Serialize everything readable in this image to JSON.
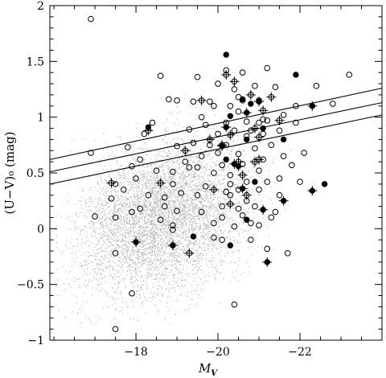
{
  "chart_data": {
    "type": "scatter",
    "title": "",
    "xlabel": "M",
    "xlabel_sub": "V",
    "ylabel": "(U−V)₀ (mag)",
    "xlim": [
      -15.9,
      -24.0
    ],
    "ylim": [
      -1,
      2
    ],
    "x_ticks": [
      -18,
      -20,
      -22
    ],
    "x_tick_labels": [
      "−18",
      "−20",
      "−22"
    ],
    "y_ticks": [
      -1,
      -0.5,
      0,
      0.5,
      1,
      1.5,
      2
    ],
    "y_tick_labels": [
      "−1",
      "−0.5",
      "0",
      "0.5",
      "1",
      "1.5",
      "2"
    ],
    "grid": false,
    "background_cloud": {
      "color": "#b4b4b4",
      "center_x": -18.6,
      "center_y": 0.12,
      "sigma_x": 1.0,
      "sigma_y": 0.33,
      "count": 7000,
      "x_range": [
        -16.0,
        -22.6
      ],
      "y_range": [
        -1.0,
        2.0
      ]
    },
    "lines": [
      {
        "x": [
          -15.9,
          -24.0
        ],
        "y": [
          0.62,
          1.26
        ]
      },
      {
        "x": [
          -15.9,
          -24.0
        ],
        "y": [
          0.51,
          1.13
        ]
      },
      {
        "x": [
          -15.9,
          -24.0
        ],
        "y": [
          0.4,
          1.02
        ]
      }
    ],
    "series": [
      {
        "marker": "open-circle",
        "points": [
          [
            -16.9,
            1.88
          ],
          [
            -16.9,
            0.68
          ],
          [
            -17.0,
            0.11
          ],
          [
            -17.5,
            0.1
          ],
          [
            -17.4,
            0.27
          ],
          [
            -17.5,
            0.4
          ],
          [
            -17.7,
            0.35
          ],
          [
            -17.9,
            0.15
          ],
          [
            -17.9,
            0.56
          ],
          [
            -17.8,
            0.73
          ],
          [
            -18.0,
            0.45
          ],
          [
            -18.1,
            0.62
          ],
          [
            -18.2,
            0.85
          ],
          [
            -18.3,
            0.3
          ],
          [
            -18.5,
            0.52
          ],
          [
            -18.6,
            0.08
          ],
          [
            -18.6,
            1.37
          ],
          [
            -18.7,
            0.2
          ],
          [
            -18.8,
            1.16
          ],
          [
            -18.9,
            0.03
          ],
          [
            -18.9,
            0.51
          ],
          [
            -18.9,
            -0.01
          ],
          [
            -18.9,
            0.4
          ],
          [
            -19.0,
            1.15
          ],
          [
            -19.0,
            0.74
          ],
          [
            -19.0,
            0.16
          ],
          [
            -19.2,
            0.6
          ],
          [
            -19.3,
            0.89
          ],
          [
            -19.3,
            0.55
          ],
          [
            -19.4,
            1.14
          ],
          [
            -19.4,
            0.77
          ],
          [
            -19.5,
            1.36
          ],
          [
            -19.5,
            0.3
          ],
          [
            -19.6,
            1.0
          ],
          [
            -19.6,
            0.65
          ],
          [
            -19.7,
            0.38
          ],
          [
            -19.8,
            0.75
          ],
          [
            -19.9,
            1.1
          ],
          [
            -19.9,
            0.5
          ],
          [
            -19.9,
            0.05
          ],
          [
            -20.0,
            1.3
          ],
          [
            -20.0,
            0.85
          ],
          [
            -20.1,
            0.57
          ],
          [
            -20.1,
            0.2
          ],
          [
            -20.1,
            -0.1
          ],
          [
            -20.2,
            1.42
          ],
          [
            -20.2,
            0.95
          ],
          [
            -20.3,
            0.48
          ],
          [
            -20.3,
            0.3
          ],
          [
            -20.4,
            1.25
          ],
          [
            -20.4,
            0.88
          ],
          [
            -20.5,
            1.05
          ],
          [
            -20.5,
            0.18
          ],
          [
            -20.5,
            0.67
          ],
          [
            -20.6,
            1.4
          ],
          [
            -20.6,
            0.12
          ],
          [
            -20.7,
            0.96
          ],
          [
            -20.7,
            0.42
          ],
          [
            -20.8,
            0.05
          ],
          [
            -20.8,
            -0.1
          ],
          [
            -20.9,
            1.28
          ],
          [
            -20.9,
            0.72
          ],
          [
            -21.0,
            1.15
          ],
          [
            -21.0,
            0.52
          ],
          [
            -21.0,
            0.03
          ],
          [
            -21.1,
            0.98
          ],
          [
            -21.1,
            0.62
          ],
          [
            -21.2,
            1.44
          ],
          [
            -21.2,
            0.42
          ],
          [
            -21.2,
            -0.18
          ],
          [
            -21.3,
            0.75
          ],
          [
            -21.3,
            0.1
          ],
          [
            -21.4,
            1.27
          ],
          [
            -21.5,
            0.88
          ],
          [
            -21.5,
            0.3
          ],
          [
            -21.6,
            0.65
          ],
          [
            -21.7,
            -0.22
          ],
          [
            -21.8,
            0.57
          ],
          [
            -21.9,
            1.1
          ],
          [
            -22.1,
            0.68
          ],
          [
            -22.4,
            1.28
          ],
          [
            -22.8,
            1.12
          ],
          [
            -23.2,
            1.38
          ],
          [
            -20.4,
            -0.68
          ],
          [
            -17.9,
            -0.58
          ],
          [
            -17.5,
            -0.22
          ],
          [
            -17.5,
            -0.9
          ],
          [
            -18.1,
            0.18
          ],
          [
            -19.6,
            0.15
          ],
          [
            -19.9,
            -0.08
          ],
          [
            -20.4,
            0.02
          ],
          [
            -20.7,
            0.25
          ],
          [
            -21.0,
            0.35
          ],
          [
            -20.2,
            0.75
          ],
          [
            -20.6,
            0.58
          ],
          [
            -21.1,
            0.85
          ],
          [
            -20.3,
            1.1
          ],
          [
            -20.5,
            0.35
          ],
          [
            -21.4,
            0.15
          ],
          [
            -18.7,
            0.28
          ],
          [
            -19.1,
            0.32
          ],
          [
            -20.8,
            0.88
          ],
          [
            -19.8,
            1.14
          ],
          [
            -20.0,
            0.68
          ],
          [
            -20.6,
            1.15
          ],
          [
            -21.9,
            0.95
          ],
          [
            -22.0,
            0.42
          ],
          [
            -21.6,
            1.02
          ],
          [
            -20.1,
            0.1
          ],
          [
            -20.9,
            0.2
          ],
          [
            -19.5,
            0.55
          ],
          [
            -18.4,
            0.95
          ],
          [
            -19.7,
            0.93
          ],
          [
            -20.3,
            0.4
          ],
          [
            -21.2,
            0.97
          ],
          [
            -20.7,
            0.83
          ],
          [
            -20.5,
            1.18
          ],
          [
            -21.0,
            0.95
          ],
          [
            -20.2,
            0.33
          ],
          [
            -21.5,
            0.45
          ]
        ]
      },
      {
        "marker": "open-circle-cross",
        "points": [
          [
            -17.4,
            0.41
          ],
          [
            -18.3,
            0.88
          ],
          [
            -18.6,
            0.41
          ],
          [
            -19.2,
            0.7
          ],
          [
            -19.6,
            1.15
          ],
          [
            -19.8,
            0.8
          ],
          [
            -20.2,
            1.38
          ],
          [
            -20.3,
            0.84
          ],
          [
            -20.4,
            1.32
          ],
          [
            -20.5,
            0.6
          ],
          [
            -20.6,
            0.48
          ],
          [
            -20.8,
            1.2
          ],
          [
            -20.9,
            0.6
          ],
          [
            -21.0,
            0.62
          ],
          [
            -21.1,
            1.06
          ],
          [
            -21.3,
            1.18
          ],
          [
            -21.5,
            0.97
          ],
          [
            -19.9,
            0.35
          ],
          [
            -20.1,
            0.75
          ],
          [
            -20.3,
            0.22
          ],
          [
            -20.7,
            0.3
          ],
          [
            -20.9,
            0.9
          ],
          [
            -19.3,
            -0.22
          ],
          [
            -21.0,
            0.82
          ]
        ]
      },
      {
        "marker": "filled-circle",
        "points": [
          [
            -18.3,
            0.91
          ],
          [
            -20.2,
            1.56
          ],
          [
            -20.3,
            1.01
          ],
          [
            -20.6,
            1.16
          ],
          [
            -20.7,
            0.8
          ],
          [
            -20.8,
            1.12
          ],
          [
            -20.9,
            0.42
          ],
          [
            -21.1,
            0.9
          ],
          [
            -21.6,
            0.8
          ],
          [
            -21.9,
            1.38
          ],
          [
            -22.6,
            0.4
          ],
          [
            -19.4,
            -0.07
          ],
          [
            -20.3,
            -0.15
          ],
          [
            -20.7,
            0.08
          ],
          [
            -20.2,
            0.62
          ]
        ]
      },
      {
        "marker": "filled-circle-cross",
        "points": [
          [
            -18.0,
            -0.12
          ],
          [
            -18.9,
            -0.15
          ],
          [
            -20.2,
            0.91
          ],
          [
            -20.4,
            0.58
          ],
          [
            -20.6,
            0.36
          ],
          [
            -20.7,
            1.04
          ],
          [
            -21.1,
            0.17
          ],
          [
            -21.2,
            -0.3
          ],
          [
            -21.6,
            0.25
          ],
          [
            -22.3,
            1.1
          ],
          [
            -22.3,
            0.34
          ],
          [
            -20.5,
            0.56
          ],
          [
            -20.1,
            0.74
          ],
          [
            -21.0,
            1.14
          ]
        ]
      }
    ]
  }
}
